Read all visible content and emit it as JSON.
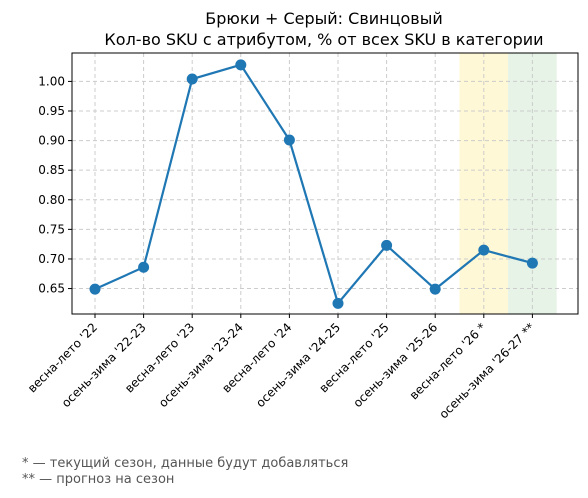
{
  "chart_data": {
    "type": "line",
    "title": "Брюки + Серый: Свинцовый",
    "subtitle": "Кол-во SKU с атрибутом, % от всех SKU в категории",
    "categories": [
      "весна-лето '22",
      "осень-зима '22-23",
      "весна-лето '23",
      "осень-зима '23-24",
      "весна-лето '24",
      "осень-зима '24-25",
      "весна-лето '25",
      "осень-зима '25-26",
      "весна-лето '26 *",
      "осень-зима '26-27 **"
    ],
    "series": [
      {
        "values": [
          0.649,
          0.686,
          1.004,
          1.028,
          0.901,
          0.625,
          0.723,
          0.649,
          0.715,
          0.693
        ]
      }
    ],
    "ylim": [
      0.607,
      1.048
    ],
    "yticks": [
      "0.65",
      "0.70",
      "0.75",
      "0.80",
      "0.85",
      "0.90",
      "0.95",
      "1.00"
    ],
    "grid": true,
    "highlight_bands": [
      {
        "category_index": 8,
        "color": "#fff8d6"
      },
      {
        "category_index": 9,
        "color": "#e6f3e6"
      }
    ],
    "line_color": "#1f77b4"
  },
  "footnotes": [
    "* — текущий сезон, данные будут добавляться",
    "** — прогноз на сезон"
  ]
}
